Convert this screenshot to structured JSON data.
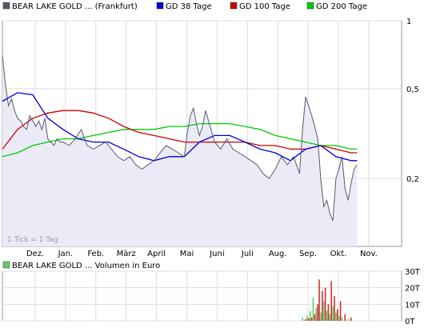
{
  "chart_data": [
    {
      "type": "line",
      "legend": [
        {
          "name": "BEAR LAKE GOLD ... (Frankfurt)",
          "color": "#555a6e"
        },
        {
          "name": "GD 38 Tage",
          "color": "#0000cc"
        },
        {
          "name": "GD 100 Tage",
          "color": "#cc0000"
        },
        {
          "name": "GD 200 Tage",
          "color": "#00cc00"
        }
      ],
      "legend_placement": "top",
      "yscale": "log",
      "ylim": [
        0.1,
        1
      ],
      "yticks": [
        "1",
        "0,5",
        "0,2"
      ],
      "ytick_values": [
        1,
        0.5,
        0.2
      ],
      "x_months": [
        "Dez.",
        "Jan.",
        "Feb.",
        "März",
        "April",
        "Mai",
        "Juni",
        "Juli",
        "Aug.",
        "Sep.",
        "Okt.",
        "Nov."
      ],
      "annotation": "1 Tick = 1 Tag",
      "grid": true,
      "series": [
        {
          "name": "BEAR LAKE GOLD ... (Frankfurt)",
          "color": "#555a6e",
          "x": [
            0.0,
            0.1,
            0.2,
            0.3,
            0.4,
            0.5,
            0.6,
            0.7,
            0.8,
            0.9,
            1.0,
            1.1,
            1.2,
            1.3,
            1.4,
            1.5,
            1.6,
            1.7,
            1.8,
            1.9,
            2.0,
            2.2,
            2.4,
            2.6,
            2.8,
            3.0,
            3.2,
            3.4,
            3.6,
            3.8,
            4.0,
            4.2,
            4.4,
            4.6,
            4.8,
            5.0,
            5.2,
            5.4,
            5.6,
            5.8,
            6.0,
            6.1,
            6.2,
            6.3,
            6.4,
            6.5,
            6.6,
            6.7,
            6.8,
            7.0,
            7.2,
            7.4,
            7.6,
            7.8,
            8.0,
            8.2,
            8.4,
            8.6,
            8.8,
            9.0,
            9.2,
            9.4,
            9.6,
            9.7,
            9.8,
            9.9,
            10.0,
            10.1,
            10.2,
            10.3,
            10.4,
            10.5,
            10.6,
            10.7,
            10.8,
            10.9,
            11.0,
            11.1,
            11.2,
            11.3,
            11.4,
            11.5,
            11.6,
            11.7
          ],
          "values": [
            0.7,
            0.52,
            0.42,
            0.45,
            0.4,
            0.37,
            0.36,
            0.34,
            0.33,
            0.38,
            0.36,
            0.34,
            0.36,
            0.33,
            0.37,
            0.3,
            0.29,
            0.28,
            0.3,
            0.29,
            0.29,
            0.28,
            0.3,
            0.33,
            0.28,
            0.27,
            0.28,
            0.29,
            0.27,
            0.25,
            0.24,
            0.25,
            0.23,
            0.22,
            0.23,
            0.24,
            0.26,
            0.28,
            0.27,
            0.26,
            0.25,
            0.32,
            0.38,
            0.41,
            0.35,
            0.31,
            0.34,
            0.4,
            0.36,
            0.29,
            0.27,
            0.3,
            0.27,
            0.26,
            0.25,
            0.24,
            0.23,
            0.21,
            0.2,
            0.22,
            0.25,
            0.23,
            0.25,
            0.23,
            0.21,
            0.33,
            0.46,
            0.42,
            0.38,
            0.34,
            0.3,
            0.2,
            0.15,
            0.16,
            0.14,
            0.13,
            0.2,
            0.22,
            0.25,
            0.18,
            0.16,
            0.19,
            0.22,
            0.23
          ]
        },
        {
          "name": "GD 38 Tage",
          "color": "#0000cc",
          "x": [
            0.0,
            0.5,
            1.0,
            1.5,
            2.0,
            2.5,
            3.0,
            3.5,
            4.0,
            4.5,
            5.0,
            5.5,
            6.0,
            6.5,
            7.0,
            7.5,
            8.0,
            8.5,
            9.0,
            9.5,
            10.0,
            10.5,
            11.0,
            11.5,
            11.7
          ],
          "values": [
            0.44,
            0.48,
            0.47,
            0.37,
            0.33,
            0.3,
            0.29,
            0.29,
            0.27,
            0.25,
            0.24,
            0.25,
            0.25,
            0.29,
            0.31,
            0.31,
            0.29,
            0.27,
            0.26,
            0.24,
            0.27,
            0.28,
            0.25,
            0.24,
            0.24
          ]
        },
        {
          "name": "GD 100 Tage",
          "color": "#cc0000",
          "x": [
            0.0,
            0.5,
            1.0,
            1.5,
            2.0,
            2.5,
            3.0,
            3.5,
            4.0,
            4.5,
            5.0,
            5.5,
            6.0,
            6.5,
            7.0,
            7.5,
            8.0,
            8.5,
            9.0,
            9.5,
            10.0,
            10.5,
            11.0,
            11.5,
            11.7
          ],
          "values": [
            0.27,
            0.33,
            0.37,
            0.39,
            0.4,
            0.4,
            0.39,
            0.37,
            0.34,
            0.32,
            0.31,
            0.3,
            0.29,
            0.29,
            0.29,
            0.29,
            0.29,
            0.28,
            0.28,
            0.27,
            0.27,
            0.28,
            0.27,
            0.26,
            0.26
          ]
        },
        {
          "name": "GD 200 Tage",
          "color": "#00cc00",
          "x": [
            0.0,
            0.5,
            1.0,
            1.5,
            2.0,
            2.5,
            3.0,
            3.5,
            4.0,
            4.5,
            5.0,
            5.5,
            6.0,
            6.5,
            7.0,
            7.5,
            8.0,
            8.5,
            9.0,
            9.5,
            10.0,
            10.5,
            11.0,
            11.5,
            11.7
          ],
          "values": [
            0.25,
            0.26,
            0.28,
            0.29,
            0.3,
            0.3,
            0.31,
            0.32,
            0.33,
            0.33,
            0.33,
            0.34,
            0.34,
            0.35,
            0.35,
            0.35,
            0.34,
            0.33,
            0.31,
            0.3,
            0.29,
            0.28,
            0.28,
            0.27,
            0.27
          ]
        }
      ]
    },
    {
      "type": "bar",
      "legend": [
        {
          "name": "BEAR LAKE GOLD ... Volumen in Euro",
          "color": "#66cc66"
        }
      ],
      "ylim": [
        0,
        30000
      ],
      "yticks": [
        "30T",
        "20T",
        "10T",
        "0T"
      ],
      "ytick_values": [
        30000,
        20000,
        10000,
        0
      ],
      "x": [
        9.9,
        10.0,
        10.05,
        10.1,
        10.15,
        10.2,
        10.25,
        10.3,
        10.35,
        10.4,
        10.45,
        10.5,
        10.55,
        10.6,
        10.65,
        10.7,
        10.75,
        10.8,
        10.85,
        10.9,
        10.95,
        11.0,
        11.05,
        11.1,
        11.15,
        11.2,
        11.3,
        11.4,
        11.5
      ],
      "values": [
        2000,
        1000,
        3000,
        1500,
        6000,
        2000,
        14000,
        4000,
        8000,
        10000,
        25000,
        5000,
        18000,
        12000,
        20000,
        6000,
        10000,
        4000,
        24000,
        9000,
        15000,
        5000,
        7000,
        3000,
        12000,
        2000,
        4000,
        1000,
        2000
      ],
      "colors": [
        "#66cc66",
        "#cc3333",
        "#66cc66",
        "#cc3333",
        "#66cc66",
        "#cc3333",
        "#66cc66",
        "#cc3333",
        "#66cc66",
        "#cc3333",
        "#cc3333",
        "#66cc66",
        "#cc3333",
        "#66cc66",
        "#cc3333",
        "#66cc66",
        "#cc3333",
        "#66cc66",
        "#cc3333",
        "#66cc66",
        "#cc3333",
        "#66cc66",
        "#cc3333",
        "#66cc66",
        "#cc3333",
        "#66cc66",
        "#cc3333",
        "#66cc66",
        "#cc3333"
      ]
    }
  ]
}
